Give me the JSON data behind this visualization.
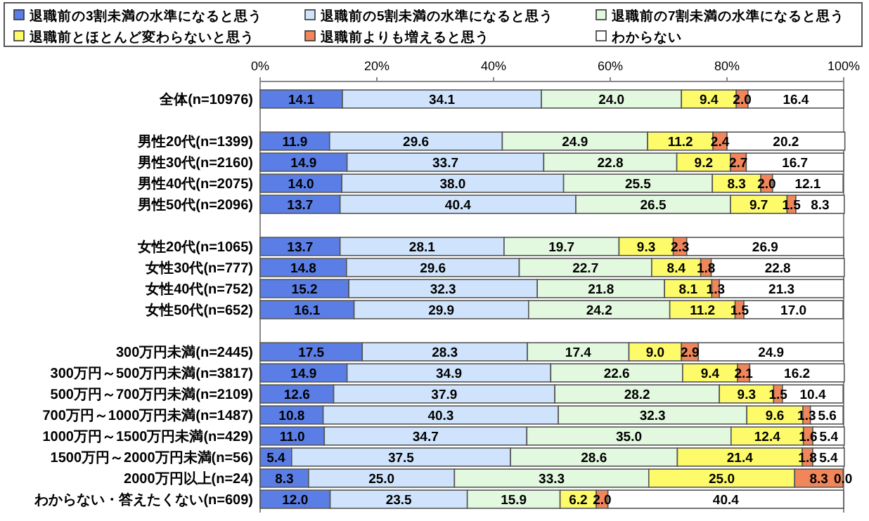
{
  "chart_data": {
    "type": "bar",
    "orientation": "horizontal",
    "stacked": true,
    "legend": "top",
    "grid": false,
    "categories": [
      "全体(n=10976)",
      null,
      "男性20代(n=1399)",
      "男性30代(n=2160)",
      "男性40代(n=2075)",
      "男性50代(n=2096)",
      null,
      "女性20代(n=1065)",
      "女性30代(n=777)",
      "女性40代(n=752)",
      "女性50代(n=652)",
      null,
      "300万円未満(n=2445)",
      "300万円～500万円未満(n=3817)",
      "500万円～700万円未満(n=2109)",
      "700万円～1000万円未満(n=1487)",
      "1000万円～1500万円未満(n=429)",
      "1500万円～2000万円未満(n=56)",
      "2000万円以上(n=24)",
      "わからない・答えたくない(n=609)"
    ],
    "xlim": [
      0,
      100
    ],
    "xticks": [
      {
        "value": 0,
        "label": "0%"
      },
      {
        "value": 20,
        "label": "20%"
      },
      {
        "value": 40,
        "label": "40%"
      },
      {
        "value": 60,
        "label": "60%"
      },
      {
        "value": 80,
        "label": "80%"
      },
      {
        "value": 100,
        "label": "100%"
      }
    ],
    "series": [
      {
        "name": "退職前の3割未満の水準になると思う",
        "color": "#5a7ee6",
        "values": [
          14.1,
          null,
          11.9,
          14.9,
          14.0,
          13.7,
          null,
          13.7,
          14.8,
          15.2,
          16.1,
          null,
          17.5,
          14.9,
          12.6,
          10.8,
          11.0,
          5.4,
          8.3,
          12.0
        ],
        "value_labels": [
          "14.1",
          null,
          "11.9",
          "14.9",
          "14.0",
          "13.7",
          null,
          "13.7",
          "14.8",
          "15.2",
          "16.1",
          null,
          "17.5",
          "14.9",
          "12.6",
          "10.8",
          "11.0",
          "5.4",
          "8.3",
          "12.0"
        ]
      },
      {
        "name": "退職前の5割未満の水準になると思う",
        "color": "#cfe4fc",
        "values": [
          34.1,
          null,
          29.6,
          33.7,
          38.0,
          40.4,
          null,
          28.1,
          29.6,
          32.3,
          29.9,
          null,
          28.3,
          34.9,
          37.9,
          40.3,
          34.7,
          37.5,
          25.0,
          23.5
        ],
        "value_labels": [
          "34.1",
          null,
          "29.6",
          "33.7",
          "38.0",
          "40.4",
          null,
          "28.1",
          "29.6",
          "32.3",
          "29.9",
          null,
          "28.3",
          "34.9",
          "37.9",
          "40.3",
          "34.7",
          "37.5",
          "25.0",
          "23.5"
        ]
      },
      {
        "name": "退職前の7割未満の水準になると思う",
        "color": "#e2f8df",
        "values": [
          24.0,
          null,
          24.9,
          22.8,
          25.5,
          26.5,
          null,
          19.7,
          22.7,
          21.8,
          24.2,
          null,
          17.4,
          22.6,
          28.2,
          32.3,
          35.0,
          28.6,
          33.3,
          15.9
        ],
        "value_labels": [
          "24.0",
          null,
          "24.9",
          "22.8",
          "25.5",
          "26.5",
          null,
          "19.7",
          "22.7",
          "21.8",
          "24.2",
          null,
          "17.4",
          "22.6",
          "28.2",
          "32.3",
          "35.0",
          "28.6",
          "33.3",
          "15.9"
        ]
      },
      {
        "name": "退職前とほとんど変わらないと思う",
        "color": "#fdfb6a",
        "values": [
          9.4,
          null,
          11.2,
          9.2,
          8.3,
          9.7,
          null,
          9.3,
          8.4,
          8.1,
          11.2,
          null,
          9.0,
          9.4,
          9.3,
          9.6,
          12.4,
          21.4,
          25.0,
          6.2
        ],
        "value_labels": [
          "9.4",
          null,
          "11.2",
          "9.2",
          "8.3",
          "9.7",
          null,
          "9.3",
          "8.4",
          "8.1",
          "11.2",
          null,
          "9.0",
          "9.4",
          "9.3",
          "9.6",
          "12.4",
          "21.4",
          "25.0",
          "6.2"
        ]
      },
      {
        "name": "退職前よりも増えると思う",
        "color": "#f0865a",
        "values": [
          2.0,
          null,
          2.4,
          2.7,
          2.0,
          1.5,
          null,
          2.3,
          1.8,
          1.3,
          1.5,
          null,
          2.9,
          2.1,
          1.5,
          1.3,
          1.6,
          1.8,
          8.3,
          2.0
        ],
        "value_labels": [
          "2.0",
          null,
          "2.4",
          "2.7",
          "2.0",
          "1.5",
          null,
          "2.3",
          "1.8",
          "1.3",
          "1.5",
          null,
          "2.9",
          "2.1",
          "1.5",
          "1.3",
          "1.6",
          "1.8",
          "8.3",
          "2.0"
        ]
      },
      {
        "name": "わからない",
        "color": "#ffffff",
        "values": [
          16.4,
          null,
          20.2,
          16.7,
          12.1,
          8.3,
          null,
          26.9,
          22.8,
          21.3,
          17.0,
          null,
          24.9,
          16.2,
          10.4,
          5.6,
          5.4,
          5.4,
          0.0,
          40.4
        ],
        "value_labels": [
          "16.4",
          null,
          "20.2",
          "16.7",
          "12.1",
          "8.3",
          null,
          "26.9",
          "22.8",
          "21.3",
          "17.0",
          null,
          "24.9",
          "16.2",
          "10.4",
          "5.6",
          "5.4",
          "5.4",
          "0.0",
          "40.4"
        ]
      }
    ]
  }
}
